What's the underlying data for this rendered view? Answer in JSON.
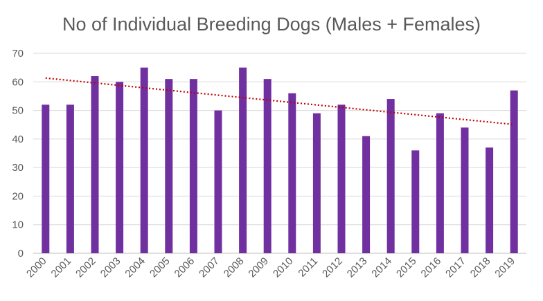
{
  "chart_data": {
    "type": "bar",
    "title": "No of Individual Breeding Dogs (Males + Females)",
    "xlabel": "",
    "ylabel": "",
    "categories": [
      "2000",
      "2001",
      "2002",
      "2003",
      "2004",
      "2005",
      "2006",
      "2007",
      "2008",
      "2009",
      "2010",
      "2011",
      "2012",
      "2013",
      "2014",
      "2015",
      "2016",
      "2017",
      "2018",
      "2019"
    ],
    "values": [
      52,
      52,
      62,
      60,
      65,
      61,
      61,
      50,
      65,
      61,
      56,
      49,
      52,
      41,
      54,
      36,
      49,
      44,
      37,
      57
    ],
    "ylim": [
      0,
      70
    ],
    "yticks": [
      "0",
      "10",
      "20",
      "30",
      "40",
      "50",
      "60",
      "70"
    ],
    "grid": true,
    "legend": "none",
    "bar_color": "#7030A0",
    "trendline": {
      "type": "linear",
      "color": "#C00000",
      "style": "dotted"
    },
    "colors": {
      "grid": "#D9D9D9",
      "axis": "#BFBFBF",
      "text": "#595959"
    }
  }
}
